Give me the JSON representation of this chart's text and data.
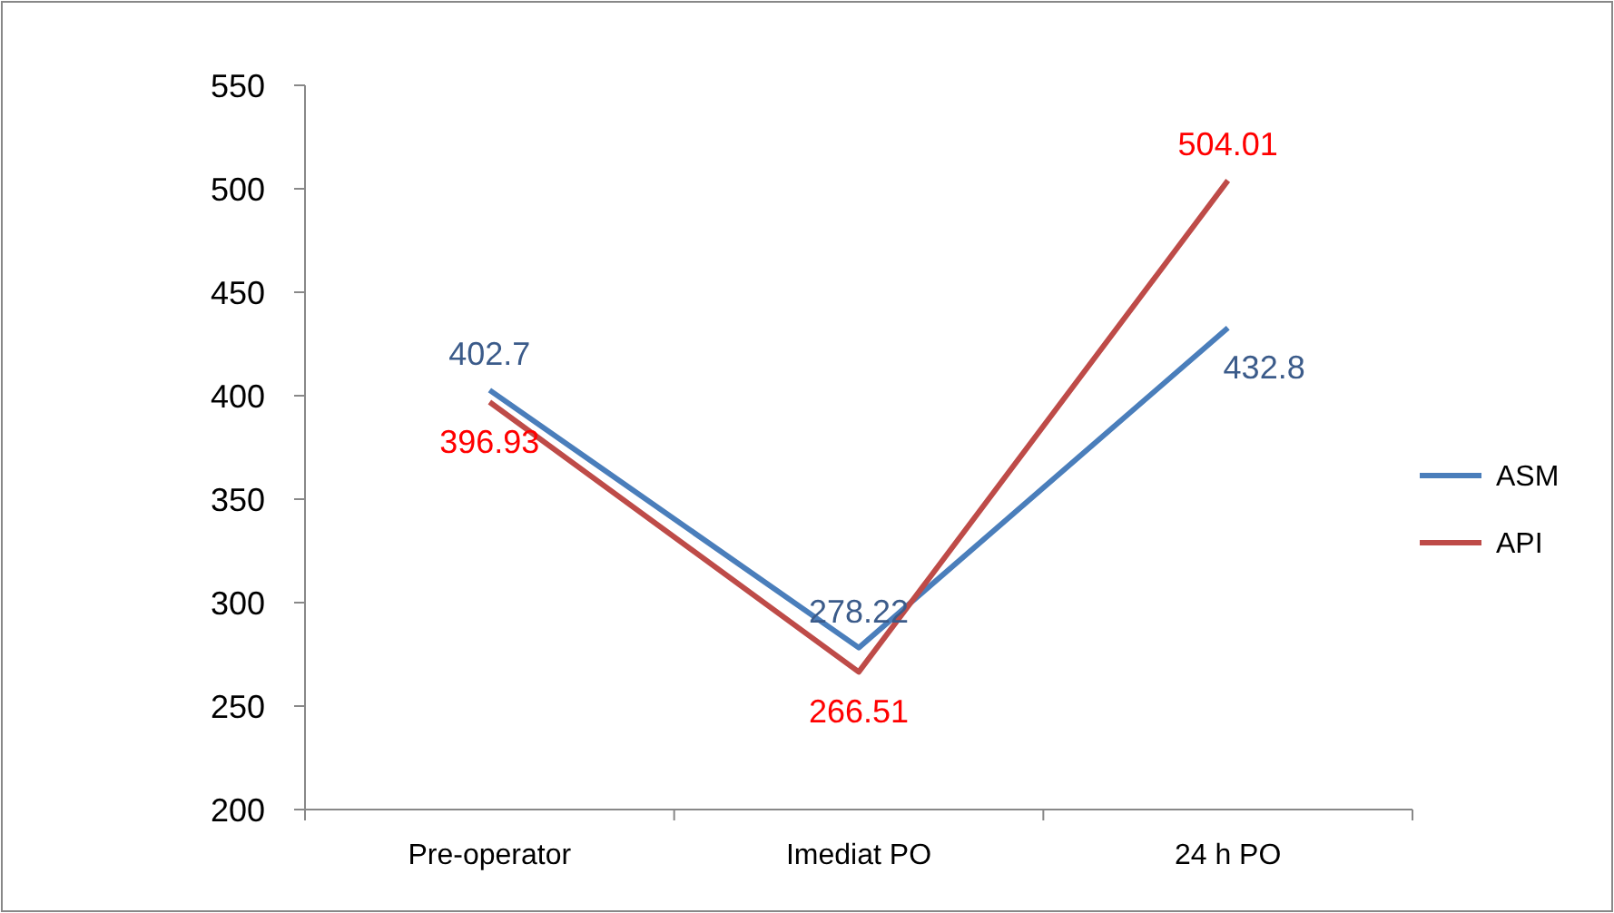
{
  "chart_data": {
    "type": "line",
    "categories": [
      "Pre-operator",
      "Imediat PO",
      "24 h PO"
    ],
    "series": [
      {
        "name": "ASM",
        "color": "#4a7ebb",
        "values": [
          402.7,
          278.22,
          432.8
        ]
      },
      {
        "name": "API",
        "color": "#be4b48",
        "values": [
          396.93,
          266.51,
          504.01
        ]
      }
    ],
    "ylim": [
      200,
      550
    ],
    "yticks": [
      200,
      250,
      300,
      350,
      400,
      450,
      500,
      550
    ],
    "grid": false,
    "legend": "right",
    "data_labels": true,
    "marker": "none",
    "line_style": "solid"
  }
}
